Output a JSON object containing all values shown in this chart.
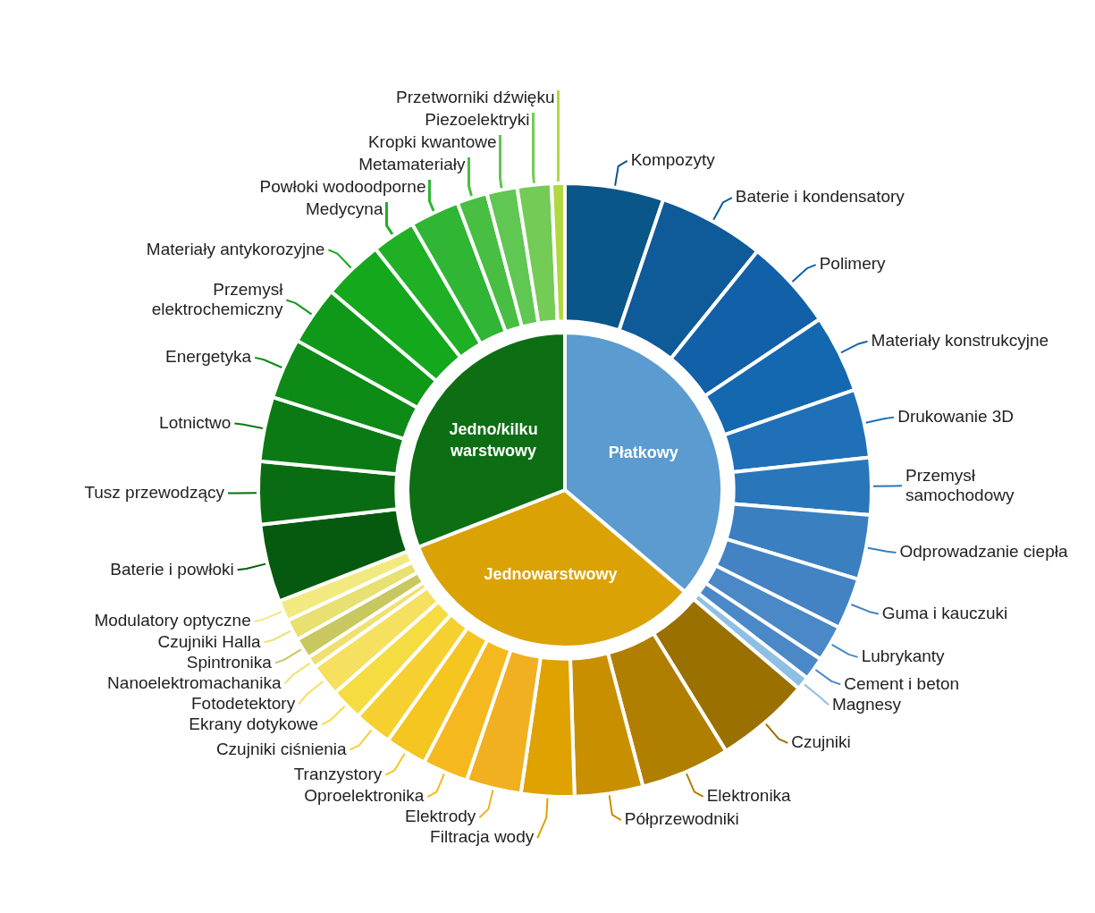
{
  "chart_data": [
    {
      "type": "pie",
      "categories": [
        "Płatkowy",
        "Jednowarstwowy",
        "Jedno/kilku warstwowy"
      ],
      "values": [
        36.2,
        32.9,
        30.9
      ],
      "colors": [
        "#5b9bd0",
        "#dba205",
        "#0d6e14"
      ]
    },
    {
      "type": "donut",
      "categories": [
        "Kompozyty",
        "Baterie i kondensatory",
        "Polimery",
        "Materiały konstrukcyjne",
        "Drukowanie 3D",
        "Przemysł samochodowy",
        "Odprowadzanie ciepła",
        "Guma i kauczuki",
        "Lubrykanty",
        "Cement i beton",
        "Magnesy",
        "Czujniki",
        "Elektronika",
        "Półprzewodniki",
        "Filtracja wody",
        "Elektrody",
        "Oproelektronika",
        "Tranzystory",
        "Czujniki ciśnienia",
        "Ekrany dotykowe",
        "Fotodetektory",
        "Nanoelektromachanika",
        "Spintronika",
        "Czujniki Halla",
        "Modulatory optyczne",
        "Baterie i powłoki",
        "Tusz przewodzący",
        "Lotnictwo",
        "Energetyka",
        "Przemysł elektrochemiczny",
        "Materiały antykorozyjne",
        "Medycyna",
        "Powłoki wodoodporne",
        "Metamateriały",
        "Kropki kwantowe",
        "Piezoelektryki",
        "Przetworniki dźwięku"
      ],
      "values": [
        5.2,
        5.6,
        4.8,
        4.1,
        3.6,
        3.0,
        3.4,
        2.7,
        1.9,
        1.2,
        0.7,
        5.0,
        4.7,
        3.6,
        2.8,
        2.9,
        2.4,
        2.2,
        2.0,
        1.7,
        1.7,
        0.6,
        1.1,
        1.1,
        1.1,
        4.1,
        3.3,
        3.4,
        3.2,
        3.1,
        3.2,
        2.3,
        2.6,
        1.6,
        1.6,
        1.8,
        0.7
      ],
      "colors": [
        "#0a5688",
        "#0f5a98",
        "#1160a8",
        "#1468b0",
        "#2070b8",
        "#2a76ba",
        "#3a7fc0",
        "#4383c4",
        "#4a88c8",
        "#4a88c8",
        "#8ec0e6",
        "#9a7000",
        "#b07f00",
        "#c88f00",
        "#dfa200",
        "#f0b020",
        "#f5b81e",
        "#f5c520",
        "#f5d030",
        "#f5dc40",
        "#f5e060",
        "#f0e070",
        "#c9c860",
        "#e8e070",
        "#f2ea80",
        "#065a10",
        "#0a6c12",
        "#0c7a14",
        "#0e8a16",
        "#109818",
        "#14a81c",
        "#20b025",
        "#30b534",
        "#48be42",
        "#5fc752",
        "#74cb55",
        "#b0d840"
      ]
    }
  ]
}
